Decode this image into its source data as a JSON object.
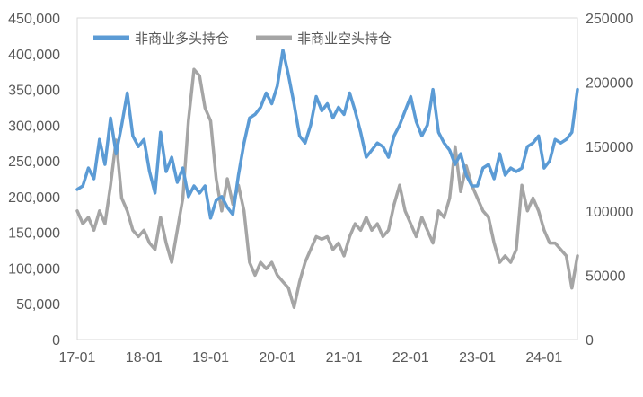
{
  "chart_data": {
    "type": "line",
    "x_range": [
      "2017-01",
      "2024-07"
    ],
    "x_ticks": [
      "17-01",
      "18-01",
      "19-01",
      "20-01",
      "21-01",
      "22-01",
      "23-01",
      "24-01"
    ],
    "y_left": {
      "ylim": [
        0,
        450000
      ],
      "ticks": [
        "0",
        "50,000",
        "100,000",
        "150,000",
        "200,000",
        "250,000",
        "300,000",
        "350,000",
        "400,000",
        "450,000"
      ]
    },
    "y_right": {
      "ylim": [
        0,
        250000
      ],
      "ticks": [
        "0",
        "50000",
        "100000",
        "150000",
        "200000",
        "250000"
      ]
    },
    "legend_position": "top-left",
    "grid": false,
    "series": [
      {
        "name": "非商业多头持仓",
        "axis": "left",
        "color": "#5b9bd5",
        "points": [
          [
            "2017-01",
            210000
          ],
          [
            "2017-02",
            215000
          ],
          [
            "2017-03",
            240000
          ],
          [
            "2017-04",
            225000
          ],
          [
            "2017-05",
            280000
          ],
          [
            "2017-06",
            245000
          ],
          [
            "2017-07",
            310000
          ],
          [
            "2017-08",
            260000
          ],
          [
            "2017-09",
            300000
          ],
          [
            "2017-10",
            345000
          ],
          [
            "2017-11",
            285000
          ],
          [
            "2017-12",
            270000
          ],
          [
            "2018-01",
            280000
          ],
          [
            "2018-02",
            235000
          ],
          [
            "2018-03",
            205000
          ],
          [
            "2018-04",
            290000
          ],
          [
            "2018-05",
            235000
          ],
          [
            "2018-06",
            255000
          ],
          [
            "2018-07",
            220000
          ],
          [
            "2018-08",
            240000
          ],
          [
            "2018-09",
            200000
          ],
          [
            "2018-10",
            215000
          ],
          [
            "2018-11",
            205000
          ],
          [
            "2018-12",
            215000
          ],
          [
            "2019-01",
            170000
          ],
          [
            "2019-02",
            195000
          ],
          [
            "2019-03",
            200000
          ],
          [
            "2019-04",
            185000
          ],
          [
            "2019-05",
            175000
          ],
          [
            "2019-06",
            230000
          ],
          [
            "2019-07",
            275000
          ],
          [
            "2019-08",
            310000
          ],
          [
            "2019-09",
            315000
          ],
          [
            "2019-10",
            325000
          ],
          [
            "2019-11",
            345000
          ],
          [
            "2019-12",
            330000
          ],
          [
            "2020-01",
            355000
          ],
          [
            "2020-02",
            405000
          ],
          [
            "2020-03",
            370000
          ],
          [
            "2020-04",
            330000
          ],
          [
            "2020-05",
            285000
          ],
          [
            "2020-06",
            275000
          ],
          [
            "2020-07",
            300000
          ],
          [
            "2020-08",
            340000
          ],
          [
            "2020-09",
            320000
          ],
          [
            "2020-10",
            330000
          ],
          [
            "2020-11",
            310000
          ],
          [
            "2020-12",
            325000
          ],
          [
            "2021-01",
            315000
          ],
          [
            "2021-02",
            345000
          ],
          [
            "2021-03",
            320000
          ],
          [
            "2021-04",
            290000
          ],
          [
            "2021-05",
            255000
          ],
          [
            "2021-06",
            265000
          ],
          [
            "2021-07",
            275000
          ],
          [
            "2021-08",
            270000
          ],
          [
            "2021-09",
            255000
          ],
          [
            "2021-10",
            285000
          ],
          [
            "2021-11",
            300000
          ],
          [
            "2021-12",
            320000
          ],
          [
            "2022-01",
            340000
          ],
          [
            "2022-02",
            305000
          ],
          [
            "2022-03",
            285000
          ],
          [
            "2022-04",
            300000
          ],
          [
            "2022-05",
            350000
          ],
          [
            "2022-06",
            290000
          ],
          [
            "2022-07",
            275000
          ],
          [
            "2022-08",
            265000
          ],
          [
            "2022-09",
            245000
          ],
          [
            "2022-10",
            260000
          ],
          [
            "2022-11",
            230000
          ],
          [
            "2022-12",
            215000
          ],
          [
            "2023-01",
            215000
          ],
          [
            "2023-02",
            240000
          ],
          [
            "2023-03",
            245000
          ],
          [
            "2023-04",
            225000
          ],
          [
            "2023-05",
            260000
          ],
          [
            "2023-06",
            230000
          ],
          [
            "2023-07",
            240000
          ],
          [
            "2023-08",
            235000
          ],
          [
            "2023-09",
            240000
          ],
          [
            "2023-10",
            270000
          ],
          [
            "2023-11",
            275000
          ],
          [
            "2023-12",
            285000
          ],
          [
            "2024-01",
            240000
          ],
          [
            "2024-02",
            250000
          ],
          [
            "2024-03",
            280000
          ],
          [
            "2024-04",
            275000
          ],
          [
            "2024-05",
            280000
          ],
          [
            "2024-06",
            290000
          ],
          [
            "2024-07",
            350000
          ]
        ]
      },
      {
        "name": "非商业空头持仓",
        "axis": "right",
        "color": "#a5a5a5",
        "points": [
          [
            "2017-01",
            100000
          ],
          [
            "2017-02",
            90000
          ],
          [
            "2017-03",
            95000
          ],
          [
            "2017-04",
            85000
          ],
          [
            "2017-05",
            100000
          ],
          [
            "2017-06",
            90000
          ],
          [
            "2017-07",
            120000
          ],
          [
            "2017-08",
            155000
          ],
          [
            "2017-09",
            110000
          ],
          [
            "2017-10",
            100000
          ],
          [
            "2017-11",
            85000
          ],
          [
            "2017-12",
            80000
          ],
          [
            "2018-01",
            85000
          ],
          [
            "2018-02",
            75000
          ],
          [
            "2018-03",
            70000
          ],
          [
            "2018-04",
            95000
          ],
          [
            "2018-05",
            75000
          ],
          [
            "2018-06",
            60000
          ],
          [
            "2018-07",
            85000
          ],
          [
            "2018-08",
            110000
          ],
          [
            "2018-09",
            170000
          ],
          [
            "2018-10",
            210000
          ],
          [
            "2018-11",
            205000
          ],
          [
            "2018-12",
            180000
          ],
          [
            "2019-01",
            170000
          ],
          [
            "2019-02",
            125000
          ],
          [
            "2019-03",
            100000
          ],
          [
            "2019-04",
            125000
          ],
          [
            "2019-05",
            105000
          ],
          [
            "2019-06",
            120000
          ],
          [
            "2019-07",
            100000
          ],
          [
            "2019-08",
            60000
          ],
          [
            "2019-09",
            50000
          ],
          [
            "2019-10",
            60000
          ],
          [
            "2019-11",
            55000
          ],
          [
            "2019-12",
            60000
          ],
          [
            "2020-01",
            50000
          ],
          [
            "2020-02",
            45000
          ],
          [
            "2020-03",
            40000
          ],
          [
            "2020-04",
            25000
          ],
          [
            "2020-05",
            45000
          ],
          [
            "2020-06",
            60000
          ],
          [
            "2020-07",
            70000
          ],
          [
            "2020-08",
            80000
          ],
          [
            "2020-09",
            78000
          ],
          [
            "2020-10",
            80000
          ],
          [
            "2020-11",
            70000
          ],
          [
            "2020-12",
            75000
          ],
          [
            "2021-01",
            65000
          ],
          [
            "2021-02",
            80000
          ],
          [
            "2021-03",
            90000
          ],
          [
            "2021-04",
            85000
          ],
          [
            "2021-05",
            95000
          ],
          [
            "2021-06",
            85000
          ],
          [
            "2021-07",
            90000
          ],
          [
            "2021-08",
            80000
          ],
          [
            "2021-09",
            85000
          ],
          [
            "2021-10",
            105000
          ],
          [
            "2021-11",
            120000
          ],
          [
            "2021-12",
            100000
          ],
          [
            "2022-01",
            90000
          ],
          [
            "2022-02",
            80000
          ],
          [
            "2022-03",
            95000
          ],
          [
            "2022-04",
            85000
          ],
          [
            "2022-05",
            75000
          ],
          [
            "2022-06",
            100000
          ],
          [
            "2022-07",
            95000
          ],
          [
            "2022-08",
            110000
          ],
          [
            "2022-09",
            150000
          ],
          [
            "2022-10",
            115000
          ],
          [
            "2022-11",
            135000
          ],
          [
            "2022-12",
            120000
          ],
          [
            "2023-01",
            110000
          ],
          [
            "2023-02",
            100000
          ],
          [
            "2023-03",
            95000
          ],
          [
            "2023-04",
            75000
          ],
          [
            "2023-05",
            60000
          ],
          [
            "2023-06",
            65000
          ],
          [
            "2023-07",
            60000
          ],
          [
            "2023-08",
            70000
          ],
          [
            "2023-09",
            120000
          ],
          [
            "2023-10",
            100000
          ],
          [
            "2023-11",
            110000
          ],
          [
            "2023-12",
            100000
          ],
          [
            "2024-01",
            85000
          ],
          [
            "2024-02",
            75000
          ],
          [
            "2024-03",
            75000
          ],
          [
            "2024-04",
            70000
          ],
          [
            "2024-05",
            65000
          ],
          [
            "2024-06",
            40000
          ],
          [
            "2024-07",
            65000
          ]
        ]
      }
    ]
  }
}
